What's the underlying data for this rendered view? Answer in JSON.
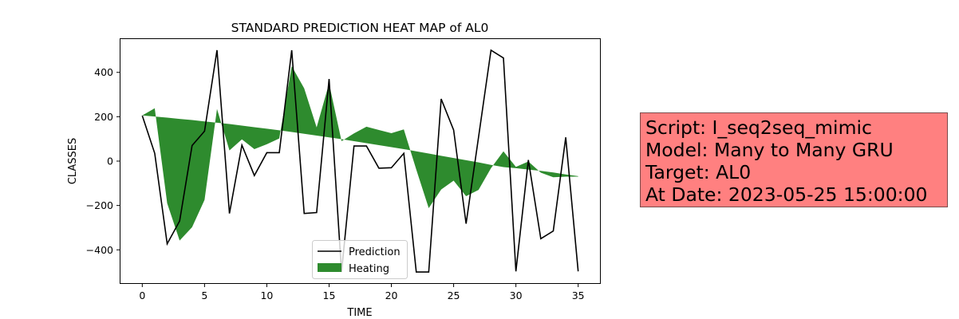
{
  "chart_data": {
    "type": "line",
    "title": "STANDARD PREDICTION HEAT MAP of AL0",
    "xlabel": "TIME",
    "ylabel": "CLASSES",
    "xlim": [
      -1.75,
      36.75
    ],
    "ylim": [
      -550,
      550
    ],
    "xticks": [
      0,
      5,
      10,
      15,
      20,
      25,
      30,
      35
    ],
    "yticks": [
      -400,
      -200,
      0,
      200,
      400
    ],
    "legend_position": "lower center",
    "series": [
      {
        "name": "Prediction",
        "color": "#000000",
        "x": [
          0,
          1,
          2,
          3,
          4,
          5,
          6,
          7,
          8,
          9,
          10,
          11,
          12,
          13,
          14,
          15,
          16,
          17,
          18,
          19,
          20,
          21,
          22,
          23,
          24,
          25,
          26,
          27,
          28,
          29,
          30,
          31,
          32,
          33,
          34,
          35
        ],
        "y": [
          205,
          35,
          -373,
          -270,
          70,
          135,
          500,
          -236,
          72,
          -65,
          38,
          38,
          500,
          -236,
          -232,
          370,
          -500,
          68,
          68,
          -32,
          -30,
          35,
          -500,
          -500,
          280,
          140,
          -282,
          108,
          500,
          465,
          -497,
          5,
          -350,
          -315,
          107,
          -497
        ]
      },
      {
        "name": "Heating",
        "type": "area",
        "color": "#2e8b2e",
        "x": [
          0,
          1,
          2,
          3,
          4,
          5,
          6,
          7,
          8,
          9,
          10,
          11,
          12,
          13,
          14,
          15,
          16,
          17,
          18,
          19,
          20,
          21,
          22,
          23,
          24,
          25,
          26,
          27,
          28,
          29,
          30,
          31,
          32,
          33,
          34,
          35
        ],
        "y1": [
          206,
          201,
          196,
          190,
          185,
          179,
          173,
          167,
          160,
          153,
          146,
          139,
          131,
          123,
          115,
          107,
          99,
          90,
          81,
          72,
          63,
          54,
          44,
          34,
          24,
          14,
          4,
          -6,
          -17,
          -27,
          -32,
          -38,
          -44,
          -51,
          -60,
          -68
        ],
        "y2": [
          206,
          238,
          -190,
          -358,
          -298,
          -175,
          235,
          48,
          98,
          54,
          76,
          102,
          428,
          328,
          152,
          350,
          90,
          125,
          155,
          140,
          126,
          143,
          -38,
          -212,
          -128,
          -88,
          -158,
          -130,
          -32,
          44,
          -26,
          -2,
          -52,
          -73,
          -70,
          -70
        ]
      }
    ]
  },
  "info_box": {
    "line1": "Script: I_seq2seq_mimic",
    "line2": "Model: Many to Many GRU",
    "line3": "Target: AL0",
    "line4": "At Date: 2023-05-25 15:00:00"
  }
}
